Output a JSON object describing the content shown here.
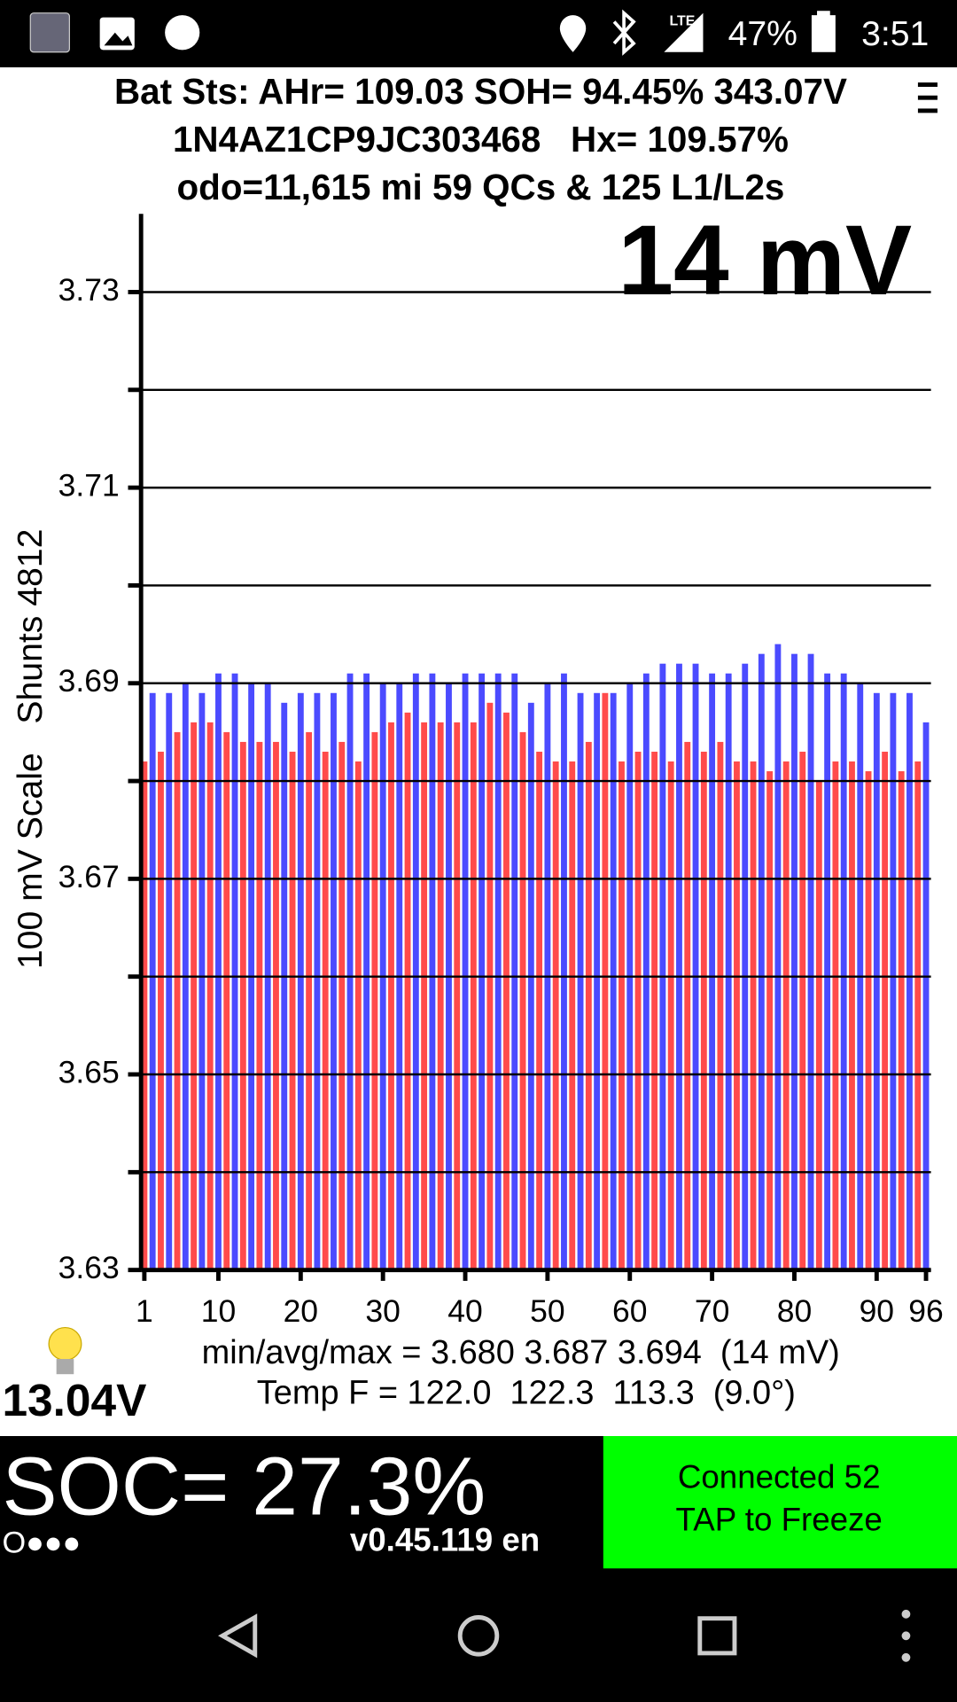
{
  "status_bar": {
    "network": "LTE",
    "battery": "47%",
    "time": "3:51"
  },
  "header": {
    "line1": "Bat Sts: AHr= 109.03 SOH= 94.45% 343.07V",
    "line2": "1N4AZ1CP9JC303468   Hx= 109.57%",
    "line3": "odo=11,615 mi 59 QCs & 125 L1/L2s"
  },
  "chart_data": {
    "type": "bar",
    "annotation": "14 mV",
    "y_label": "100 mV Scale   Shunts 4812",
    "values": [
      3.682,
      3.689,
      3.683,
      3.689,
      3.685,
      3.69,
      3.686,
      3.689,
      3.686,
      3.691,
      3.685,
      3.691,
      3.684,
      3.69,
      3.684,
      3.69,
      3.684,
      3.688,
      3.683,
      3.689,
      3.685,
      3.689,
      3.683,
      3.689,
      3.684,
      3.691,
      3.682,
      3.691,
      3.685,
      3.69,
      3.686,
      3.69,
      3.687,
      3.691,
      3.686,
      3.691,
      3.686,
      3.69,
      3.686,
      3.691,
      3.686,
      3.691,
      3.688,
      3.691,
      3.687,
      3.691,
      3.685,
      3.688,
      3.683,
      3.69,
      3.682,
      3.691,
      3.682,
      3.689,
      3.684,
      3.689,
      3.689,
      3.689,
      3.682,
      3.69,
      3.683,
      3.691,
      3.683,
      3.692,
      3.682,
      3.692,
      3.684,
      3.692,
      3.683,
      3.691,
      3.684,
      3.691,
      3.682,
      3.692,
      3.682,
      3.693,
      3.681,
      3.694,
      3.682,
      3.693,
      3.683,
      3.693,
      3.68,
      3.691,
      3.682,
      3.691,
      3.682,
      3.69,
      3.681,
      3.689,
      3.683,
      3.689,
      3.681,
      3.689,
      3.682,
      3.686
    ],
    "colors": [
      "#ff4b4b",
      "#4b4bff"
    ],
    "xlim": [
      0.6,
      96.6
    ],
    "xticks": [
      1,
      10,
      20,
      30,
      40,
      50,
      60,
      70,
      80,
      90,
      96
    ],
    "ylim": [
      3.63,
      3.738
    ],
    "yticks": [
      3.63,
      3.65,
      3.67,
      3.69,
      3.71,
      3.73
    ],
    "minor_yticks": [
      3.64,
      3.66,
      3.68,
      3.7,
      3.72
    ],
    "grid": true
  },
  "stats": {
    "minmax": "min/avg/max = 3.680 3.687 3.694  (14 mV)",
    "temp": "Temp F = 122.0  122.3  113.3  (9.0°)",
    "voltage": "13.04V"
  },
  "footer": {
    "soc": "SOC= 27.3%",
    "dots": "O●●●",
    "version": "v0.45.119 en",
    "connected": "Connected 52",
    "tap": "TAP to Freeze"
  }
}
